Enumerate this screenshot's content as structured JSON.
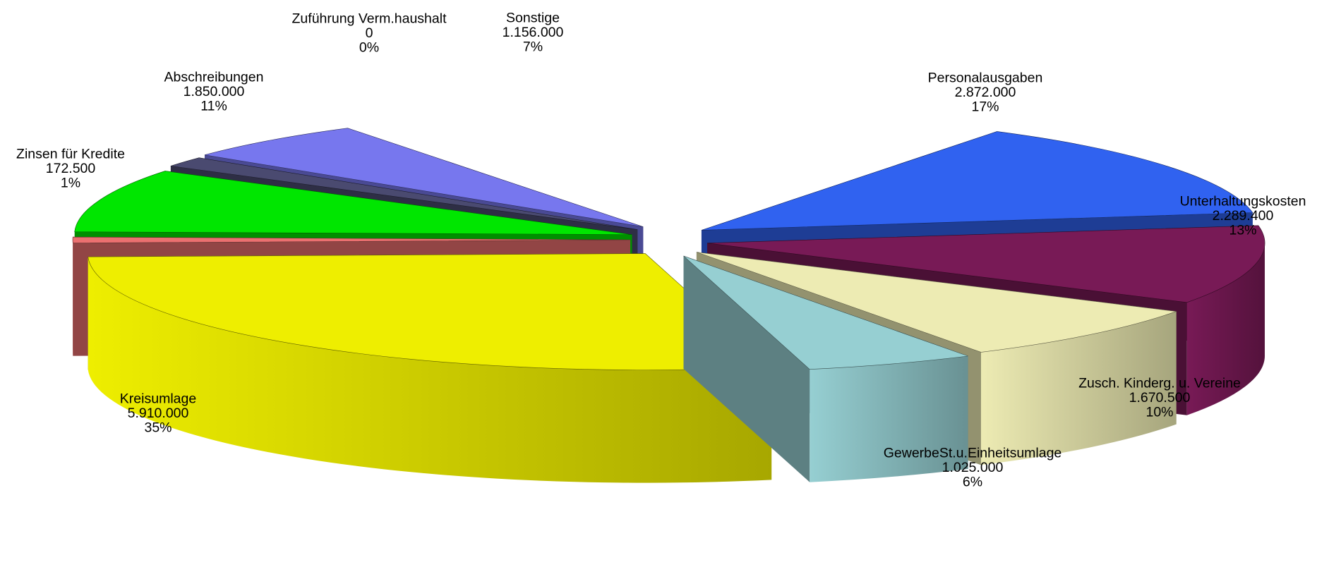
{
  "chart_data": {
    "type": "pie",
    "style": "3d-exploded",
    "slices": [
      {
        "name": "Personalausgaben",
        "value": 2872000,
        "value_label": "2.872.000",
        "percent_label": "17%",
        "color": "#3062F0"
      },
      {
        "name": "Unterhaltungskosten",
        "value": 2289400,
        "value_label": "2.289.400",
        "percent_label": "13%",
        "color": "#781A56"
      },
      {
        "name": "Zusch. Kinderg. u. Vereine",
        "value": 1670500,
        "value_label": "1.670.500",
        "percent_label": "10%",
        "color": "#EDEBB3"
      },
      {
        "name": "GewerbeSt.u.Einheitsumlage",
        "value": 1025000,
        "value_label": "1.025.000",
        "percent_label": "6%",
        "color": "#96CFD2"
      },
      {
        "name": "Kreisumlage",
        "value": 5910000,
        "value_label": "5.910.000",
        "percent_label": "35%",
        "color": "#EEEE00"
      },
      {
        "name": "Zinsen für Kredite",
        "value": 172500,
        "value_label": "172.500",
        "percent_label": "1%",
        "color": "#EB7070"
      },
      {
        "name": "Abschreibungen",
        "value": 1850000,
        "value_label": "1.850.000",
        "percent_label": "11%",
        "color": "#00E600"
      },
      {
        "name": "Zuführung Verm.haushalt",
        "value": 0,
        "value_label": "0",
        "percent_label": "0%",
        "color": "#4A4A70"
      },
      {
        "name": "Sonstige",
        "value": 1156000,
        "value_label": "1.156.000",
        "percent_label": "7%",
        "color": "#7777EE"
      }
    ]
  }
}
